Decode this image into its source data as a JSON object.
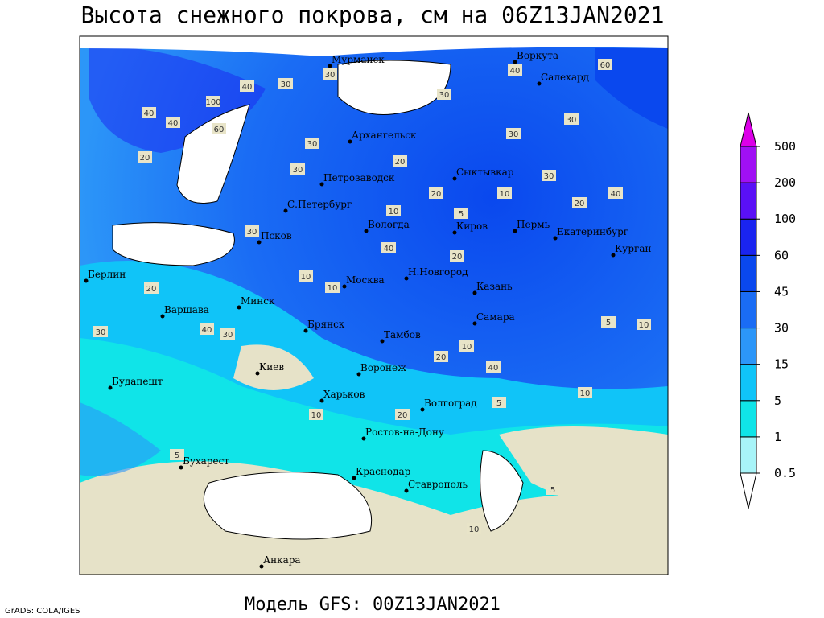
{
  "header": {
    "title": "Высота снежного покрова, см на 06Z13JAN2021"
  },
  "footer": {
    "model": "Модель GFS: 00Z13JAN2021",
    "credit": "GrADS: COLA/IGES"
  },
  "legend": {
    "levels": [
      0.5,
      1,
      5,
      15,
      30,
      45,
      60,
      100,
      200,
      500
    ],
    "colors": [
      "#ffffff",
      "#a8f4f8",
      "#10e4e8",
      "#10c4f8",
      "#2c96f8",
      "#1a6cf4",
      "#0a48ee",
      "#1a24f0",
      "#5a10f6",
      "#a010f4",
      "#dc00e8"
    ]
  },
  "cities": [
    {
      "name": "Мурманск"
    },
    {
      "name": "Воркута"
    },
    {
      "name": "Салехард"
    },
    {
      "name": "Архангельск"
    },
    {
      "name": "Сыктывкар"
    },
    {
      "name": "Петрозаводск"
    },
    {
      "name": "С.Петербург"
    },
    {
      "name": "Вологда"
    },
    {
      "name": "Киров"
    },
    {
      "name": "Пермь"
    },
    {
      "name": "Екатеринбург"
    },
    {
      "name": "Курган"
    },
    {
      "name": "Псков"
    },
    {
      "name": "Берлин"
    },
    {
      "name": "Москва"
    },
    {
      "name": "Н.Новгород"
    },
    {
      "name": "Казань"
    },
    {
      "name": "Минск"
    },
    {
      "name": "Варшава"
    },
    {
      "name": "Самара"
    },
    {
      "name": "Брянск"
    },
    {
      "name": "Тамбов"
    },
    {
      "name": "Киев"
    },
    {
      "name": "Воронеж"
    },
    {
      "name": "Будапешт"
    },
    {
      "name": "Харьков"
    },
    {
      "name": "Волгоград"
    },
    {
      "name": "Ростов-на-Дону"
    },
    {
      "name": "Бухарест"
    },
    {
      "name": "Краснодар"
    },
    {
      "name": "Ставрополь"
    },
    {
      "name": "Анкара"
    }
  ],
  "contour_labels": [
    40,
    30,
    30,
    100,
    40,
    60,
    40,
    30,
    20,
    30,
    40,
    60,
    30,
    20,
    30,
    30,
    30,
    20,
    10,
    5,
    10,
    20,
    40,
    30,
    40,
    20,
    10,
    10,
    20,
    30,
    40,
    30,
    40,
    20,
    10,
    5,
    10,
    10,
    5,
    20,
    10,
    5,
    5,
    10
  ]
}
